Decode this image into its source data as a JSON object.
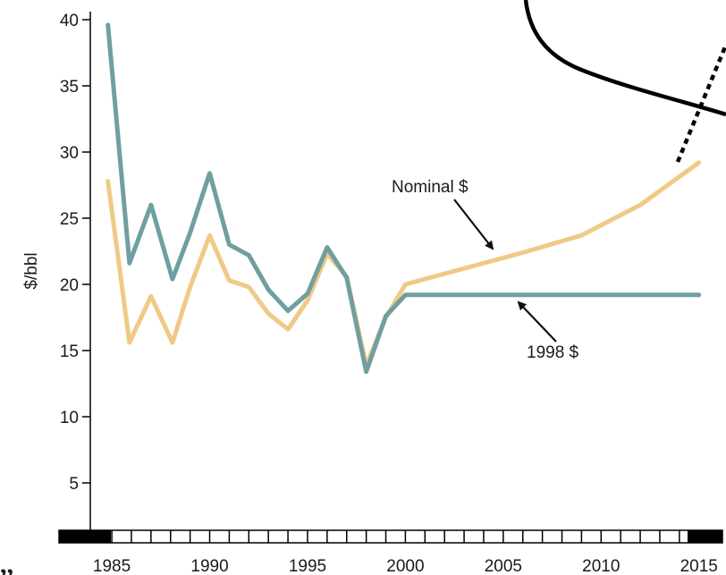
{
  "chart_data": {
    "type": "line",
    "title": "",
    "xlabel": "",
    "ylabel": "$/bbl",
    "xlim": [
      1983.9,
      2016.2
    ],
    "ylim": [
      0,
      41
    ],
    "y_ticks": [
      5,
      10,
      15,
      20,
      25,
      30,
      35,
      40
    ],
    "x_tick_labels": [
      1985,
      1990,
      1995,
      2000,
      2005,
      2010,
      2015
    ],
    "grid": false,
    "series": [
      {
        "name": "Nominal $",
        "color": "#f0c987",
        "points": [
          [
            1984.8,
            27.8
          ],
          [
            1985.9,
            15.6
          ],
          [
            1987.0,
            19.1
          ],
          [
            1988.1,
            15.6
          ],
          [
            1989.0,
            19.8
          ],
          [
            1990.0,
            23.7
          ],
          [
            1991.0,
            20.3
          ],
          [
            1992.0,
            19.8
          ],
          [
            1993.0,
            17.8
          ],
          [
            1994.0,
            16.6
          ],
          [
            1995.0,
            18.8
          ],
          [
            1996.0,
            22.3
          ],
          [
            1997.0,
            20.6
          ],
          [
            1998.0,
            13.9
          ],
          [
            1999.0,
            17.5
          ],
          [
            2000.0,
            20.0
          ],
          [
            2003.0,
            21.2
          ],
          [
            2006.0,
            22.4
          ],
          [
            2009.0,
            23.7
          ],
          [
            2012.0,
            26.0
          ],
          [
            2015.0,
            29.2
          ]
        ]
      },
      {
        "name": "1998 $",
        "color": "#6f9fa0",
        "points": [
          [
            1984.8,
            39.6
          ],
          [
            1985.9,
            21.6
          ],
          [
            1987.0,
            26.0
          ],
          [
            1988.1,
            20.4
          ],
          [
            1989.0,
            23.9
          ],
          [
            1990.0,
            28.4
          ],
          [
            1991.0,
            23.0
          ],
          [
            1992.0,
            22.2
          ],
          [
            1993.0,
            19.6
          ],
          [
            1994.0,
            18.0
          ],
          [
            1995.0,
            19.3
          ],
          [
            1996.0,
            22.8
          ],
          [
            1997.0,
            20.5
          ],
          [
            1998.0,
            13.4
          ],
          [
            1999.0,
            17.6
          ],
          [
            2000.0,
            19.2
          ],
          [
            2015.0,
            19.2
          ]
        ]
      }
    ],
    "annotations": [
      {
        "text": "Nominal $",
        "points_to": "Nominal $"
      },
      {
        "text": "1998 $",
        "points_to": "1998 $"
      }
    ]
  },
  "fragment_mark": ",,"
}
